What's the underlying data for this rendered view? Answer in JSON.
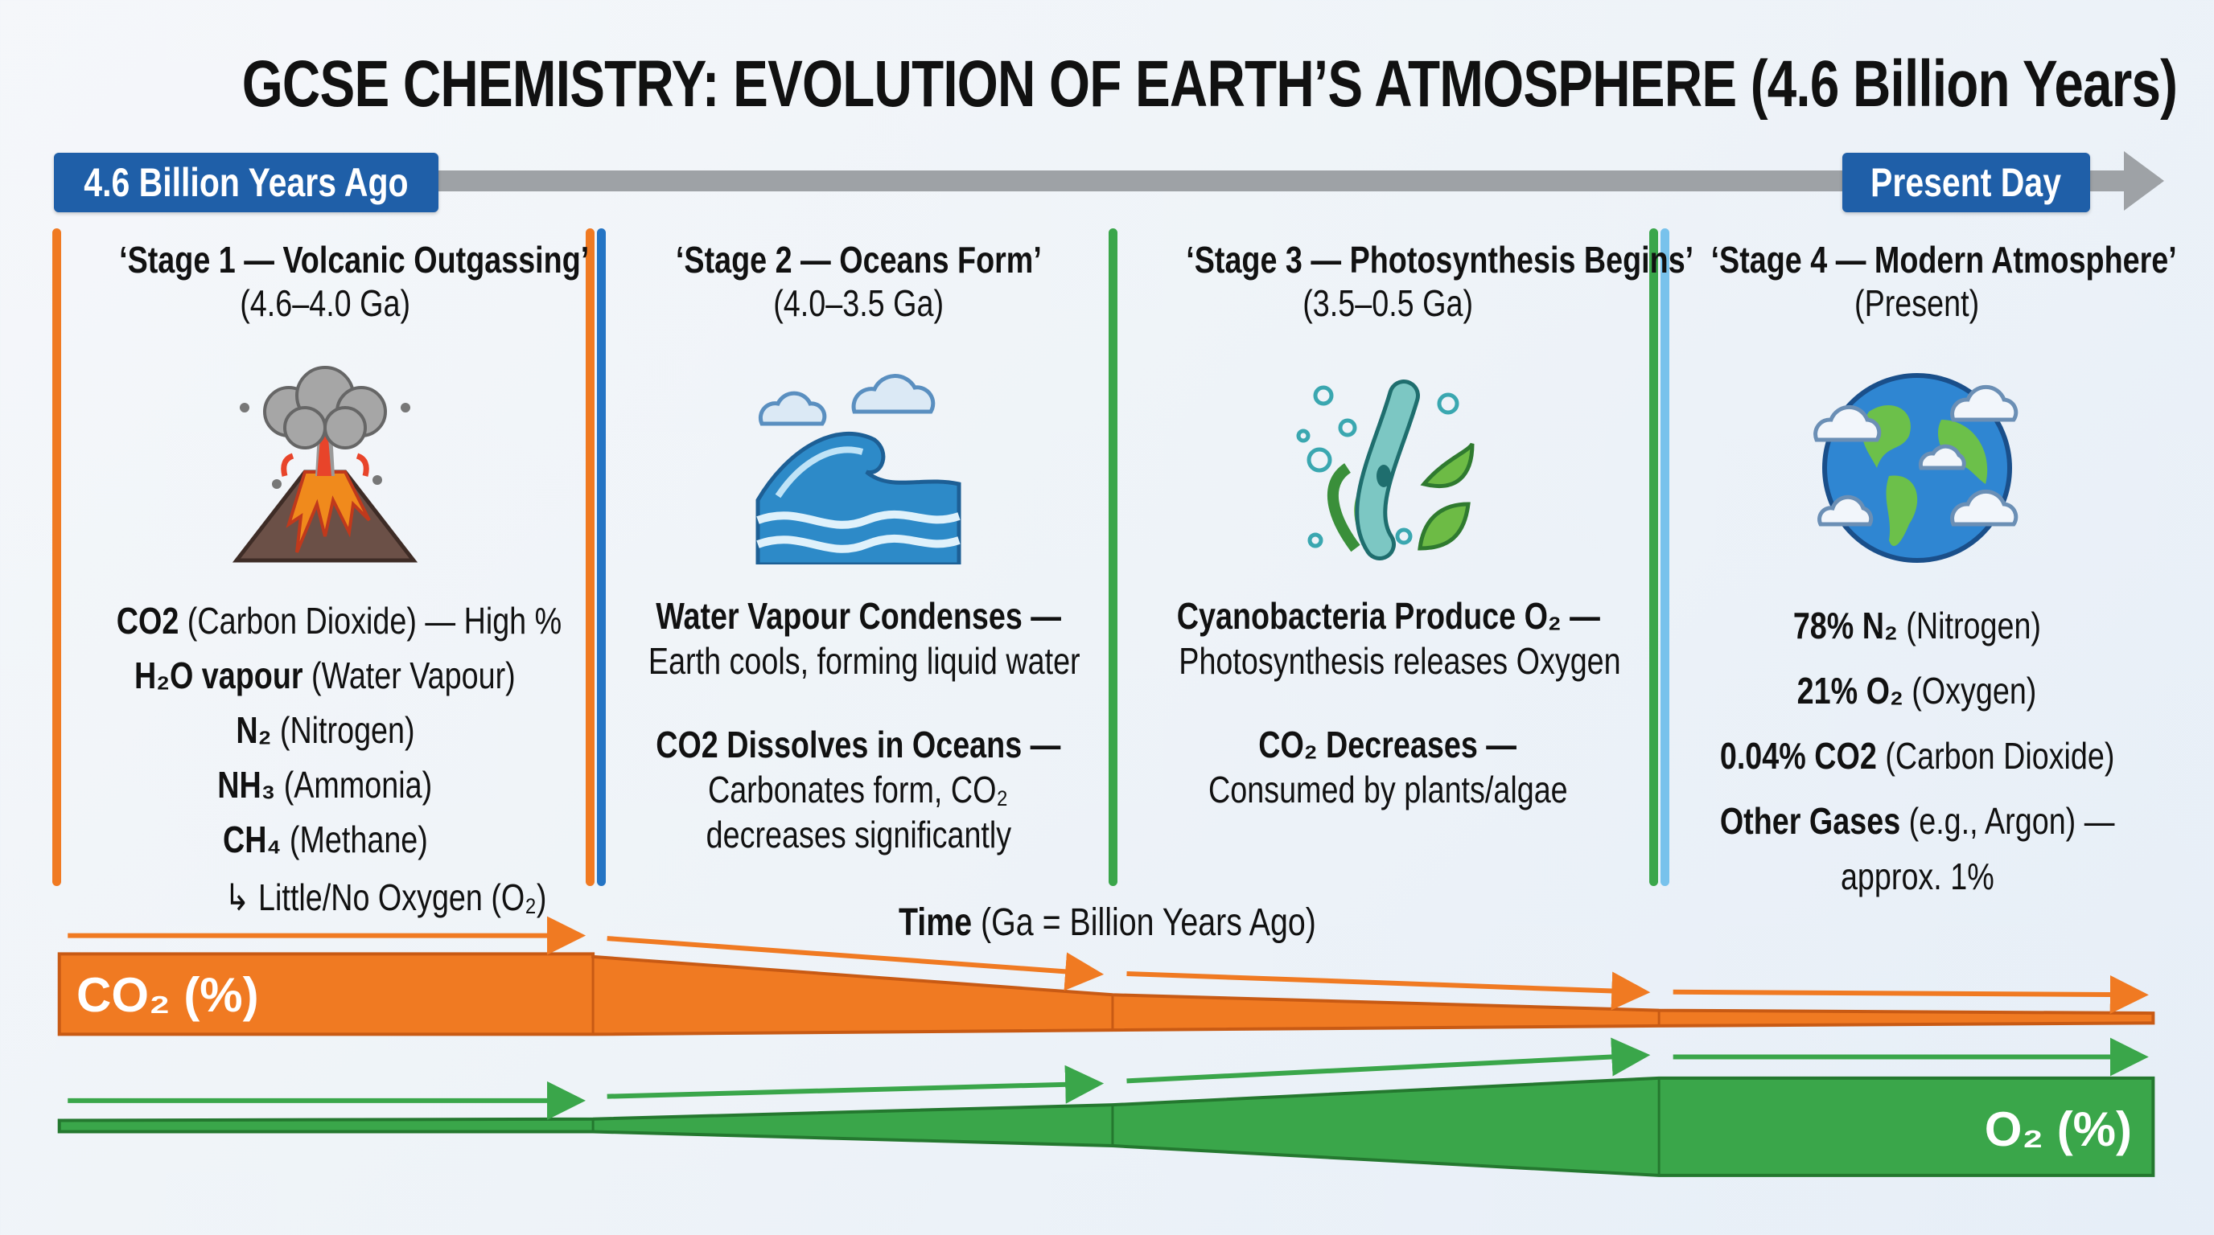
{
  "title": "GCSE CHEMISTRY: EVOLUTION OF EARTH’S ATMOSPHERE (4.6 Billion Years)",
  "timeline": {
    "start_label": "4.6 Billion Years Ago",
    "end_label": "Present Day"
  },
  "colors": {
    "orange": "#f07a22",
    "blue": "#2474c4",
    "green": "#3aa64a",
    "light_blue": "#78c2ec",
    "navy": "#1f5fa8",
    "arrow_gray": "#9ea2a6"
  },
  "stages": [
    {
      "title": "‘Stage 1 — Volcanic Outgassing’",
      "date": "(4.6–4.0 Ga)",
      "icon": "volcano-icon",
      "lines": [
        {
          "bold": "CO2",
          "text": " (Carbon Dioxide) — High %"
        },
        {
          "bold": "H₂O vapour",
          "text": " (Water Vapour)"
        },
        {
          "bold": "N₂",
          "text": " (Nitrogen)"
        },
        {
          "bold": "NH₃",
          "text": " (Ammonia)"
        },
        {
          "bold": "CH₄",
          "text": " (Methane)"
        },
        {
          "bold": "",
          "text": "↳ Little/No Oxygen (O₂)"
        }
      ]
    },
    {
      "title": "‘Stage 2 — Oceans Form’",
      "date": "(4.0–3.5 Ga)",
      "icon": "ocean-wave-icon",
      "blocks": [
        {
          "heading": "Water Vapour Condenses —",
          "body": [
            "Earth cools, forming liquid water"
          ]
        },
        {
          "heading": "CO2 Dissolves in Oceans —",
          "body": [
            "Carbonates form, CO₂",
            "decreases significantly"
          ]
        }
      ]
    },
    {
      "title": "‘Stage 3 — Photosynthesis Begins’",
      "date": "(3.5–0.5 Ga)",
      "icon": "cyanobacteria-icon",
      "blocks": [
        {
          "heading": "Cyanobacteria Produce O₂ —",
          "body": [
            "Photosynthesis releases Oxygen"
          ]
        },
        {
          "heading": "CO₂ Decreases —",
          "body": [
            "Consumed by plants/algae"
          ]
        }
      ]
    },
    {
      "title": "‘Stage 4 — Modern Atmosphere’",
      "date": "(Present)",
      "icon": "earth-globe-icon",
      "lines": [
        {
          "bold": "78% N₂",
          "text": " (Nitrogen)"
        },
        {
          "bold": "21% O₂",
          "text": " (Oxygen)"
        },
        {
          "bold": "0.04% CO2",
          "text": " (Carbon Dioxide)"
        },
        {
          "bold": "Other Gases",
          "text": " (e.g., Argon) —"
        },
        {
          "bold": "",
          "text": "approx. 1%"
        }
      ]
    }
  ],
  "axis": {
    "bold": "Time",
    "text": " (Ga = Billion Years Ago)"
  },
  "bands": {
    "co2_label": "CO₂ (%)",
    "o2_label": "O₂ (%)",
    "co2_trend": "decreasing",
    "o2_trend": "increasing"
  }
}
